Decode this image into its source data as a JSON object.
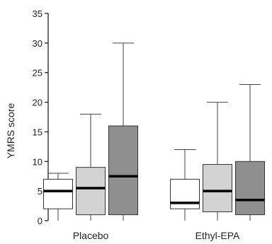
{
  "chart_data": {
    "type": "box",
    "title": "",
    "xlabel": "",
    "ylabel": "YMRS score",
    "ylim": [
      0,
      35
    ],
    "yticks": [
      0,
      5,
      10,
      15,
      20,
      25,
      30,
      35
    ],
    "grid": false,
    "legend": "none",
    "categories": [
      "Placebo",
      "Ethyl-EPA"
    ],
    "series": [
      {
        "fill": "#ffffff",
        "boxes": [
          {
            "min": 0,
            "q1": 2,
            "median": 5,
            "q3": 7,
            "max": 8
          },
          {
            "min": 0,
            "q1": 2,
            "median": 3,
            "q3": 7,
            "max": 12
          }
        ]
      },
      {
        "fill": "#d3d3d3",
        "boxes": [
          {
            "min": 0,
            "q1": 1,
            "median": 5.5,
            "q3": 9,
            "max": 18
          },
          {
            "min": 0,
            "q1": 1.5,
            "median": 5,
            "q3": 9.5,
            "max": 20
          }
        ]
      },
      {
        "fill": "#8f8f8f",
        "boxes": [
          {
            "min": 0,
            "q1": 1,
            "median": 7.5,
            "q3": 16,
            "max": 30
          },
          {
            "min": 0,
            "q1": 1,
            "median": 3.5,
            "q3": 10,
            "max": 23
          }
        ]
      }
    ]
  }
}
